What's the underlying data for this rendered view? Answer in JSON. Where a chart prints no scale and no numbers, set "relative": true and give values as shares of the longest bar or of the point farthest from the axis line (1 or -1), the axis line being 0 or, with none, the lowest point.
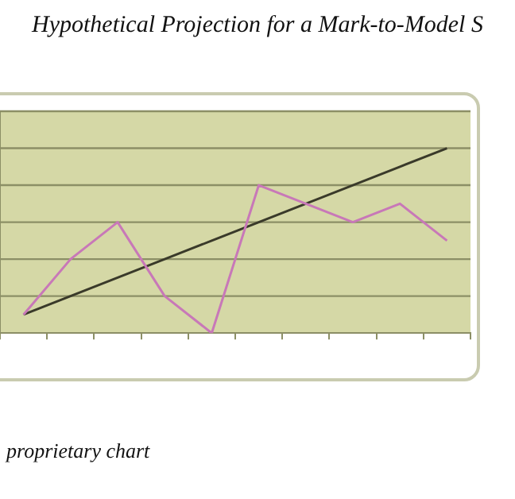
{
  "chart_data": {
    "type": "line",
    "title": "Hypothetical Projection for a Mark-to-Model S",
    "annotations": [
      "proprietary chart"
    ],
    "relative": true,
    "categories": [
      null,
      null,
      null,
      null,
      null,
      null,
      null,
      null,
      null,
      null
    ],
    "series": [
      {
        "color": "#c878b8",
        "values": [
          0.1,
          0.4,
          0.6,
          0.2,
          0,
          0.8,
          0.7,
          0.6,
          0.7,
          0.5
        ]
      },
      {
        "color": "#3a3a2a",
        "values": [
          0.1,
          0.2,
          0.3,
          0.4,
          0.5,
          0.6,
          0.7,
          0.8,
          0.9,
          1.0
        ]
      }
    ],
    "ref_lines": [
      {
        "axis": "y",
        "value": 0.2,
        "color": "#8c8f66"
      },
      {
        "axis": "y",
        "value": 0.4,
        "color": "#8c8f66"
      },
      {
        "axis": "y",
        "value": 0.6,
        "color": "#8c8f66"
      },
      {
        "axis": "y",
        "value": 0.8,
        "color": "#8c8f66"
      },
      {
        "axis": "y",
        "value": 1.0,
        "color": "#8c8f66"
      },
      {
        "axis": "y",
        "value": 1.2,
        "color": "#8c8f66"
      }
    ],
    "legend": false,
    "marker": "none",
    "line_style": "solid"
  }
}
